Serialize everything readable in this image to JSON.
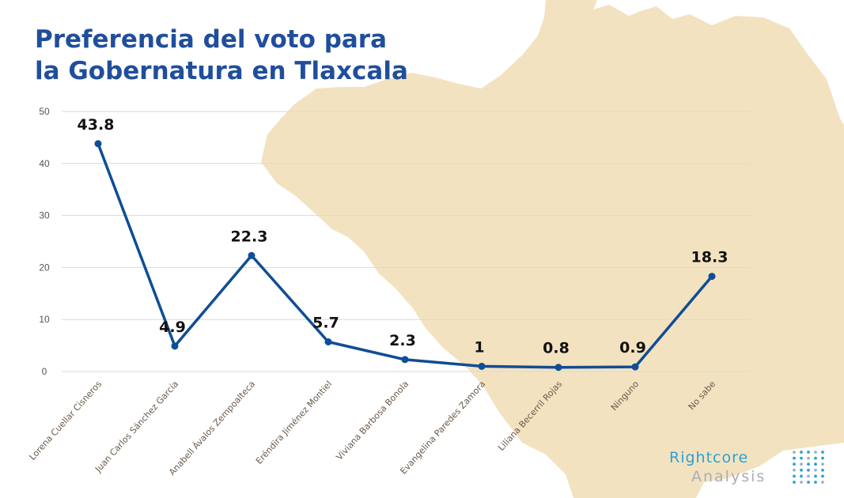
{
  "title_lines": [
    "Preferencia del voto para",
    "la Gobernatura en Tlaxcala"
  ],
  "colors": {
    "title": "#1f4e9c",
    "line": "#0f4d96",
    "grid": "#d9d9d9",
    "map": "#f3e2c0",
    "logo_primary": "#29a3d6",
    "logo_secondary": "#a9aeb6"
  },
  "chart_data": {
    "type": "line",
    "title": "Preferencia del voto para la Gobernatura en Tlaxcala",
    "xlabel": "",
    "ylabel": "",
    "categories": [
      "Lorena Cuellar Cisneros",
      "Juan Carlos Sánchez García",
      "Anabell Ávalos Zempoalteca",
      "Eréndira Jiménez Montiel",
      "Viviana Barbosa Bonola",
      "Evangelina Paredes Zamora",
      "Liliana Becerril Rojas",
      "Ninguno",
      "No sabe"
    ],
    "values": [
      43.8,
      4.9,
      22.3,
      5.7,
      2.3,
      1,
      0.8,
      0.9,
      18.3
    ],
    "data_labels": [
      "43.8",
      "4.9",
      "22.3",
      "5.7",
      "2.3",
      "1",
      "0.8",
      "0.9",
      "18.3"
    ],
    "yticks": [
      0,
      10,
      20,
      30,
      40,
      50
    ],
    "ylim": [
      0,
      50
    ],
    "grid": true,
    "legend": "none"
  },
  "logo": {
    "line1": "Rightcore",
    "line2": "Analysis",
    "icon": "dot-matrix-icon"
  }
}
